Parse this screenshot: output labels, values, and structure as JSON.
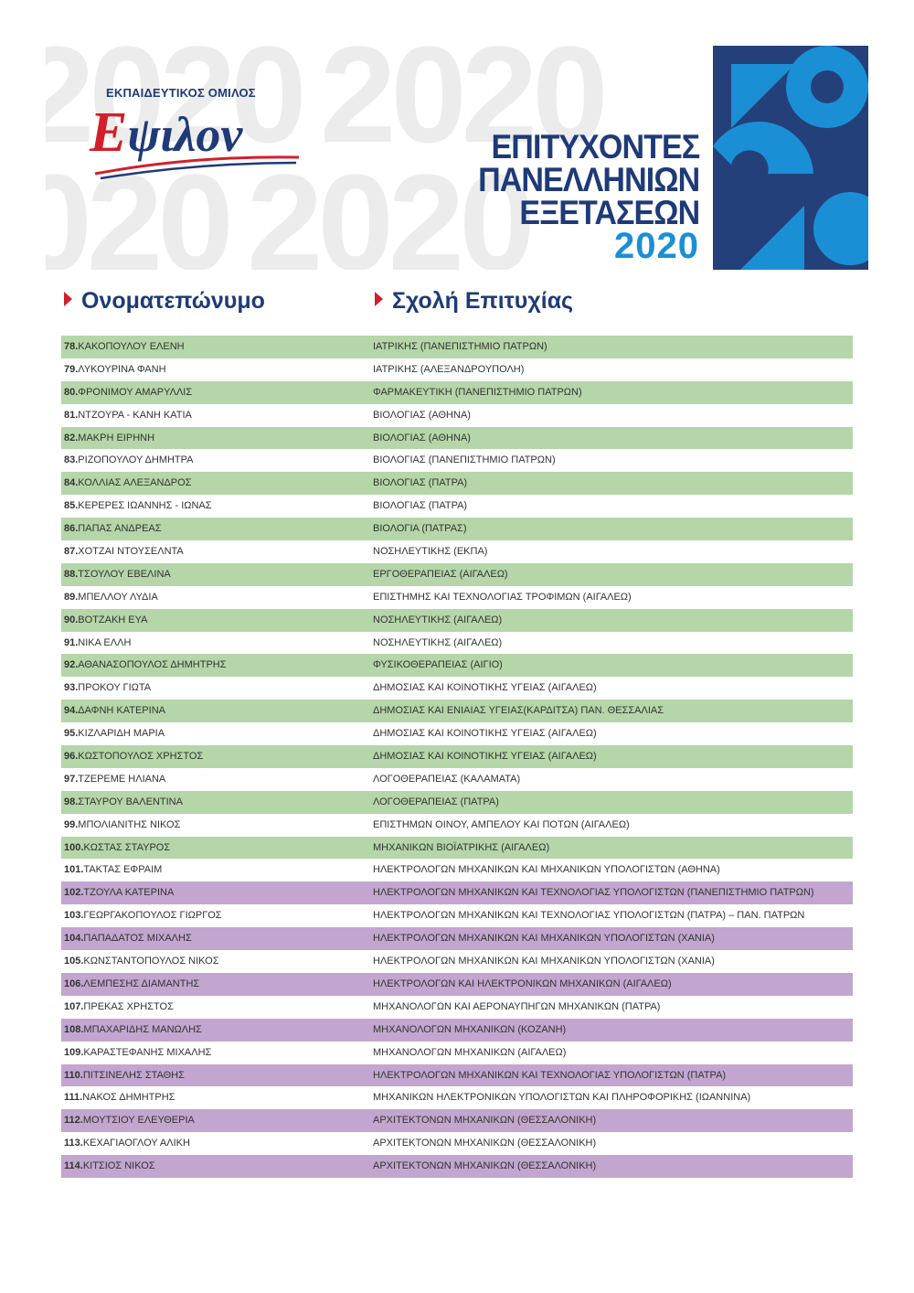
{
  "header": {
    "watermark": "2020",
    "organization": "ΕΚΠΑΙΔΕΥΤΙΚΟΣ ΟΜΙΛΟΣ",
    "logo": "Εψιλον",
    "title_lines": [
      "ΕΠΙΤΥΧΟΝΤΕΣ",
      "ΠΑΝΕΛΛΗΝΙΩΝ",
      "ΕΞΕΤΑΣΕΩΝ"
    ],
    "year": "2020"
  },
  "table": {
    "columns": [
      "Ονοματεπώνυμο",
      "Σχολή Επιτυχίας"
    ],
    "rows": [
      [
        "78.",
        "ΚΑΚΟΠΟΥΛΟΥ ΕΛΕΝΗ",
        "ΙΑΤΡΙΚΗΣ (ΠΑΝΕΠΙΣΤΗΜΙΟ ΠΑΤΡΩΝ)"
      ],
      [
        "79.",
        "ΛΥΚΟΥΡΙΝΑ ΦΑΝΗ",
        "ΙΑΤΡΙΚΗΣ (ΑΛΕΞΑΝΔΡΟΥΠΟΛΗ)"
      ],
      [
        "80.",
        "ΦΡΟΝΙΜΟΥ  ΑΜΑΡΥΛΛΙΣ",
        "ΦΑΡΜΑΚΕΥΤΙΚΗ (ΠΑΝΕΠΙΣΤΗΜΙΟ ΠΑΤΡΩΝ)"
      ],
      [
        "81.",
        "ΝΤΖΟΥΡΑ - ΚΑΝΗ ΚΑΤΙΑ",
        "ΒΙΟΛΟΓΙΑΣ (ΑΘΗΝΑ)"
      ],
      [
        "82.",
        "ΜΑΚΡΗ ΕΙΡΗΝΗ",
        "ΒΙΟΛΟΓΙΑΣ (ΑΘΗΝΑ)"
      ],
      [
        "83.",
        "ΡΙΖΟΠΟΥΛΟΥ ΔΗΜΗΤΡΑ",
        "ΒΙΟΛΟΓΙΑΣ (ΠΑΝΕΠΙΣΤΗΜΙΟ ΠΑΤΡΩΝ)"
      ],
      [
        "84.",
        "ΚΟΛΛΙΑΣ ΑΛΕΞΑΝΔΡΟΣ",
        "ΒΙΟΛΟΓΙΑΣ (ΠΑΤΡΑ)"
      ],
      [
        "85.",
        "ΚΕΡΕΡΕΣ ΙΩΑΝΝΗΣ - ΙΩΝΑΣ",
        "ΒΙΟΛΟΓΙΑΣ (ΠΑΤΡΑ)"
      ],
      [
        "86.",
        "ΠΑΠΑΣ ΑΝΔΡΕΑΣ",
        "ΒΙΟΛΟΓΙΑ (ΠΑΤΡΑΣ)"
      ],
      [
        "87.",
        "ΧΟΤΖΑΙ ΝΤΟΥΣΕΛΝΤΑ",
        "ΝΟΣΗΛΕΥΤΙΚΗΣ (ΕΚΠΑ)"
      ],
      [
        "88.",
        "ΤΣΟΥΛΟΥ ΕΒΕΛΙΝΑ",
        "ΕΡΓΟΘΕΡΑΠΕΙΑΣ (ΑΙΓΑΛΕΩ)"
      ],
      [
        "89.",
        "ΜΠΕΛΛΟΥ ΛΥΔΙΑ",
        "ΕΠΙΣΤΗΜΗΣ ΚΑΙ ΤΕΧΝΟΛΟΓΙΑΣ ΤΡΟΦΙΜΩΝ (ΑΙΓΑΛΕΩ)"
      ],
      [
        "90.",
        "ΒΟΤΖΑΚΗ ΕΥΑ",
        "ΝΟΣΗΛΕΥΤΙΚΗΣ (ΑΙΓΑΛΕΩ)"
      ],
      [
        "91.",
        "ΝΙΚΑ ΕΛΛΗ",
        "ΝΟΣΗΛΕΥΤΙΚΗΣ (ΑΙΓΑΛΕΩ)"
      ],
      [
        "92.",
        "ΑΘΑΝΑΣΟΠΟΥΛΟΣ ΔΗΜΗΤΡΗΣ",
        "ΦΥΣΙΚΟΘΕΡΑΠΕΙΑΣ (ΑΙΓΙΟ)"
      ],
      [
        "93.",
        "ΠΡΟΚΟΥ ΓΙΩΤΑ",
        "ΔΗΜΟΣΙΑΣ ΚΑΙ ΚΟΙΝΟΤΙΚΗΣ ΥΓΕΙΑΣ (ΑΙΓΑΛΕΩ)"
      ],
      [
        "94.",
        "ΔΑΦΝΗ ΚΑΤΕΡΙΝΑ",
        "ΔΗΜΟΣΙΑΣ  ΚΑΙ ΕΝΙΑΙΑΣ  ΥΓΕΙΑΣ(ΚΑΡΔΙΤΣΑ) ΠΑΝ. ΘΕΣΣΑΛΙΑΣ"
      ],
      [
        "95.",
        "ΚΙΖΛΑΡΙΔΗ ΜΑΡΙΑ",
        "ΔΗΜΟΣΙΑΣ ΚΑΙ ΚΟΙΝΟΤΙΚΗΣ ΥΓΕΙΑΣ (ΑΙΓΑΛΕΩ)"
      ],
      [
        "96.",
        "ΚΩΣΤΟΠΟΥΛΟΣ ΧΡΗΣΤΟΣ",
        "ΔΗΜΟΣΙΑΣ ΚΑΙ ΚΟΙΝΟΤΙΚΗΣ ΥΓΕΙΑΣ (ΑΙΓΑΛΕΩ)"
      ],
      [
        "97.",
        "ΤΖΕΡΕΜΕ ΗΛΙΑΝΑ",
        "ΛΟΓΟΘΕΡΑΠΕΙΑΣ (ΚΑΛΑΜΑΤΑ)"
      ],
      [
        "98.",
        "ΣΤΑΥΡΟΥ ΒΑΛΕΝΤΙΝΑ",
        "ΛΟΓΟΘΕΡΑΠΕΙΑΣ (ΠΑΤΡΑ)"
      ],
      [
        "99.",
        "ΜΠΟΛΙΑΝΙΤΗΣ ΝΙΚΟΣ",
        "ΕΠΙΣΤΗΜΩΝ ΟΙΝΟΥ, ΑΜΠΕΛΟΥ ΚΑΙ ΠΟΤΩΝ (ΑΙΓΑΛΕΩ)"
      ],
      [
        "100.",
        "ΚΩΣΤΑΣ ΣΤΑΥΡΟΣ",
        "ΜΗΧΑΝΙΚΩΝ ΒΙΟΪΑΤΡΙΚΗΣ (ΑΙΓΑΛΕΩ)"
      ],
      [
        "101.",
        "ΤΑΚΤΑΣ ΕΦΡΑΙΜ",
        "ΗΛΕΚΤΡΟΛΟΓΩΝ ΜΗΧΑΝΙΚΩΝ ΚΑΙ ΜΗΧΑΝΙΚΩΝ ΥΠΟΛΟΓΙΣΤΩΝ (ΑΘΗΝΑ)"
      ],
      [
        "102.",
        "ΤΖΟΥΛΑ ΚΑΤΕΡΙΝΑ",
        "ΗΛΕΚΤΡΟΛΟΓΩΝ ΜΗΧΑΝΙΚΩΝ ΚΑΙ ΤΕΧΝΟΛΟΓΙΑΣ ΥΠΟΛΟΓΙΣΤΩΝ (ΠΑΝΕΠΙΣΤΗΜΙΟ ΠΑΤΡΩΝ)"
      ],
      [
        "103.",
        "ΓΕΩΡΓΑΚΟΠΟΥΛΟΣ ΓΙΩΡΓΟΣ",
        "ΗΛΕΚΤΡΟΛΟΓΩΝ ΜΗΧΑΝΙΚΩΝ ΚΑΙ ΤΕΧΝΟΛΟΓΙΑΣ ΥΠΟΛΟΓΙΣΤΩΝ (ΠΑΤΡΑ) – ΠΑΝ. ΠΑΤΡΩΝ"
      ],
      [
        "104.",
        "ΠΑΠΑΔΑΤΟΣ ΜΙΧΑΛΗΣ",
        "ΗΛΕΚΤΡΟΛΟΓΩΝ ΜΗΧΑΝΙΚΩΝ ΚΑΙ ΜΗΧΑΝΙΚΩΝ ΥΠΟΛΟΓΙΣΤΩΝ (ΧΑΝΙΑ)"
      ],
      [
        "105.",
        "ΚΩΝΣΤΑΝΤΟΠΟΥΛΟΣ ΝΙΚΟΣ",
        "ΗΛΕΚΤΡΟΛΟΓΩΝ ΜΗΧΑΝΙΚΩΝ ΚΑΙ ΜΗΧΑΝΙΚΩΝ ΥΠΟΛΟΓΙΣΤΩΝ (ΧΑΝΙΑ)"
      ],
      [
        "106.",
        "ΛΕΜΠΕΣΗΣ ΔΙΑΜΑΝΤΗΣ",
        "ΗΛΕΚΤΡΟΛΟΓΩΝ ΚΑΙ ΗΛΕΚΤΡΟΝΙΚΩΝ ΜΗΧΑΝΙΚΩΝ (ΑΙΓΑΛΕΩ)"
      ],
      [
        "107.",
        "ΠΡΕΚΑΣ ΧΡΗΣΤΟΣ",
        "ΜΗΧΑΝΟΛΟΓΩΝ ΚΑΙ ΑΕΡΟΝΑΥΠΗΓΩΝ ΜΗΧΑΝΙΚΩΝ (ΠΑΤΡΑ)"
      ],
      [
        "108.",
        "ΜΠΑΧΑΡΙΔΗΣ ΜΑΝΩΛΗΣ",
        "ΜΗΧΑΝΟΛΟΓΩΝ ΜΗΧΑΝΙΚΩΝ (ΚΟΖΑΝΗ)"
      ],
      [
        "109.",
        "ΚΑΡΑΣΤΕΦΑΝΗΣ ΜΙΧΑΛΗΣ",
        "ΜΗΧΑΝΟΛΟΓΩΝ ΜΗΧΑΝΙΚΩΝ (ΑΙΓΑΛΕΩ)"
      ],
      [
        "110.",
        "ΠΙΤΣΙΝΕΛΗΣ ΣΤΑΘΗΣ",
        "ΗΛΕΚΤΡΟΛΟΓΩΝ ΜΗΧΑΝΙΚΩΝ ΚΑΙ ΤΕΧΝΟΛΟΓΙΑΣ ΥΠΟΛΟΓΙΣΤΩΝ (ΠΑΤΡΑ)"
      ],
      [
        "111.",
        "ΝΑΚΟΣ ΔΗΜΗΤΡΗΣ",
        "ΜΗΧΑΝΙΚΩΝ ΗΛΕΚΤΡΟΝΙΚΩΝ ΥΠΟΛΟΓΙΣΤΩΝ ΚΑΙ ΠΛΗΡΟΦΟΡΙΚΗΣ (ΙΩΑΝΝΙΝΑ)"
      ],
      [
        "112.",
        "ΜΟΥΤΣΙΟΥ ΕΛΕΥΘΕΡΙΑ",
        "ΑΡΧΙΤΕΚΤΟΝΩΝ ΜΗΧΑΝΙΚΩΝ (ΘΕΣΣΑΛΟΝΙΚΗ)"
      ],
      [
        "113.",
        "ΚΕΧΑΓΙΑΟΓΛΟΥ ΑΛΙΚΗ",
        "ΑΡΧΙΤΕΚΤΟΝΩΝ ΜΗΧΑΝΙΚΩΝ (ΘΕΣΣΑΛΟΝΙΚΗ)"
      ],
      [
        "114.",
        "ΚΙΤΣΙΟΣ ΝΙΚΟΣ",
        "ΑΡΧΙΤΕΚΤΟΝΩΝ ΜΗΧΑΝΙΚΩΝ (ΘΕΣΣΑΛΟΝΙΚΗ)"
      ]
    ]
  }
}
